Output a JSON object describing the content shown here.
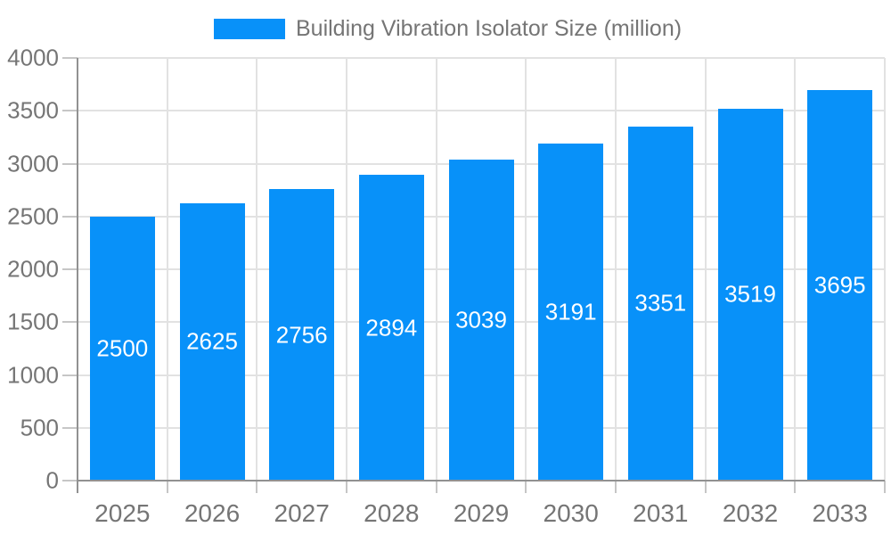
{
  "chart_data": {
    "type": "bar",
    "title": "",
    "legend_label": "Building Vibration Isolator Size (million)",
    "legend_position": "top-center",
    "categories": [
      "2025",
      "2026",
      "2027",
      "2028",
      "2029",
      "2030",
      "2031",
      "2032",
      "2033"
    ],
    "series": [
      {
        "name": "Building Vibration Isolator Size (million)",
        "values": [
          2500,
          2625,
          2756,
          2894,
          3039,
          3191,
          3351,
          3519,
          3695
        ]
      }
    ],
    "xlabel": "",
    "ylabel": "",
    "ylim": [
      0,
      4000
    ],
    "ytick_step": 500,
    "grid": true,
    "bar_labels_shown": true,
    "colors": {
      "bar": "#0891f9",
      "grid": "#e2e2e2",
      "axis": "#919191",
      "tick": "#c6c6c6",
      "tick_label": "#757575",
      "bar_label": "#ffffff",
      "background": "#ffffff"
    }
  }
}
